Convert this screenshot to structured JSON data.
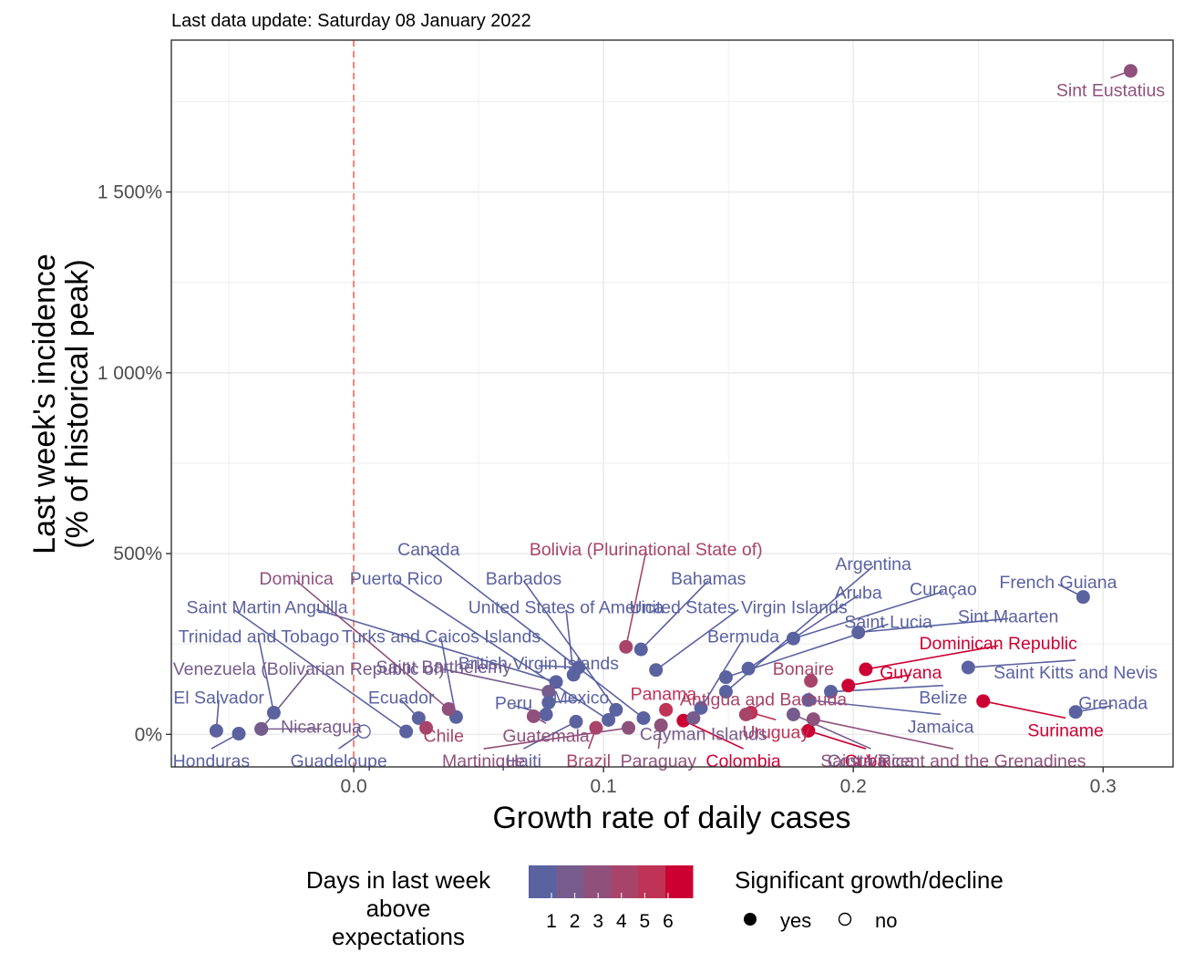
{
  "chart_data": {
    "type": "scatter",
    "subtitle": "Last data update: Saturday 08 January 2022",
    "xlabel": "Growth rate of daily cases",
    "ylabel_line1": "Last week's incidence",
    "ylabel_line2": "(% of historical peak)",
    "xlim": [
      -0.073,
      0.328
    ],
    "ylim": [
      -90,
      1920
    ],
    "x_ticks": [
      0.0,
      0.1,
      0.2,
      0.3
    ],
    "x_tick_labels": [
      "0.0",
      "0.1",
      "0.2",
      "0.3"
    ],
    "y_ticks": [
      0,
      500,
      1000,
      1500
    ],
    "y_tick_labels": [
      "0%",
      "500%",
      "1 000%",
      "1 500%"
    ],
    "reference_line_x": 0,
    "grid": true,
    "legend_position": "bottom",
    "legend_color": {
      "title_lines": [
        "Days in last week",
        "above",
        "expectations"
      ],
      "labels": [
        "1",
        "2",
        "3",
        "4",
        "5",
        "6"
      ],
      "colors": [
        "#5b62a0",
        "#765b8d",
        "#8f517c",
        "#a8446a",
        "#bf3356",
        "#cc0033"
      ]
    },
    "legend_shape": {
      "title": "Significant growth/decline",
      "items": [
        {
          "label": "yes",
          "filled": true
        },
        {
          "label": "no",
          "filled": false
        }
      ]
    },
    "points": [
      {
        "name": "Sint Eustatius",
        "x": 0.311,
        "y": 1835,
        "days": 3,
        "sig": true
      },
      {
        "name": "French Guiana",
        "x": 0.292,
        "y": 380,
        "days": 0,
        "sig": true
      },
      {
        "name": "Grenada",
        "x": 0.289,
        "y": 62,
        "days": 0,
        "sig": true
      },
      {
        "name": "Suriname",
        "x": 0.252,
        "y": 92,
        "days": 6,
        "sig": true
      },
      {
        "name": "Saint Kitts and Nevis",
        "x": 0.246,
        "y": 185,
        "days": 0,
        "sig": true
      },
      {
        "name": "Dominican Republic",
        "x": 0.205,
        "y": 180,
        "days": 6,
        "sig": true
      },
      {
        "name": "Guyana",
        "x": 0.198,
        "y": 135,
        "days": 6,
        "sig": true
      },
      {
        "name": "Sint Maarten",
        "x": 0.202,
        "y": 282,
        "days": 0,
        "sig": true
      },
      {
        "name": "Curaçao",
        "x": 0.176,
        "y": 265,
        "days": 0,
        "sig": true
      },
      {
        "name": "Aruba",
        "x": 0.158,
        "y": 182,
        "days": 0,
        "sig": true
      },
      {
        "name": "Saint Lucia",
        "x": 0.149,
        "y": 158,
        "days": 0,
        "sig": true
      },
      {
        "name": "Argentina",
        "x": 0.149,
        "y": 118,
        "days": 0,
        "sig": true
      },
      {
        "name": "Belize",
        "x": 0.191,
        "y": 118,
        "days": 0,
        "sig": true
      },
      {
        "name": "Bonaire",
        "x": 0.183,
        "y": 148,
        "days": 4,
        "sig": true
      },
      {
        "name": "Jamaica",
        "x": 0.182,
        "y": 95,
        "days": 0,
        "sig": true
      },
      {
        "name": "Cuba",
        "x": 0.182,
        "y": 10,
        "days": 6,
        "sig": true
      },
      {
        "name": "Costa Rica",
        "x": 0.176,
        "y": 55,
        "days": 2,
        "sig": true
      },
      {
        "name": "Saint Vincent and the Grenadines",
        "x": 0.184,
        "y": 42,
        "days": 3,
        "sig": true
      },
      {
        "name": "Uruguay",
        "x": 0.159,
        "y": 60,
        "days": 5,
        "sig": true
      },
      {
        "name": "Antigua and Barbuda",
        "x": 0.157,
        "y": 55,
        "days": 4,
        "sig": true
      },
      {
        "name": "Bermuda",
        "x": 0.139,
        "y": 73,
        "days": 0,
        "sig": true
      },
      {
        "name": "Panama",
        "x": 0.125,
        "y": 68,
        "days": 5,
        "sig": true
      },
      {
        "name": "Colombia",
        "x": 0.132,
        "y": 38,
        "days": 6,
        "sig": true
      },
      {
        "name": "Paraguay",
        "x": 0.123,
        "y": 25,
        "days": 3,
        "sig": true
      },
      {
        "name": "Cayman Islands",
        "x": 0.136,
        "y": 45,
        "days": 2,
        "sig": true
      },
      {
        "name": "United States Virgin Islands",
        "x": 0.121,
        "y": 178,
        "days": 0,
        "sig": true
      },
      {
        "name": "Bahamas",
        "x": 0.115,
        "y": 235,
        "days": 0,
        "sig": true
      },
      {
        "name": "Bolivia (Plurinational State of)",
        "x": 0.109,
        "y": 242,
        "days": 4,
        "sig": true
      },
      {
        "name": "Barbados",
        "x": 0.105,
        "y": 68,
        "days": 0,
        "sig": true
      },
      {
        "name": "Canada",
        "x": 0.116,
        "y": 45,
        "days": 0,
        "sig": true
      },
      {
        "name": "Puerto Rico",
        "x": 0.102,
        "y": 40,
        "days": 0,
        "sig": true
      },
      {
        "name": "United States of America",
        "x": 0.088,
        "y": 165,
        "days": 0,
        "sig": true
      },
      {
        "name": "British Virgin Islands",
        "x": 0.09,
        "y": 185,
        "days": 0,
        "sig": true
      },
      {
        "name": "Anguilla",
        "x": 0.081,
        "y": 145,
        "days": 0,
        "sig": true
      },
      {
        "name": "Saint Barthélemy",
        "x": 0.078,
        "y": 118,
        "days": 2,
        "sig": true
      },
      {
        "name": "Mexico",
        "x": 0.078,
        "y": 88,
        "days": 0,
        "sig": true
      },
      {
        "name": "Peru",
        "x": 0.077,
        "y": 55,
        "days": 0,
        "sig": true
      },
      {
        "name": "Guatemala",
        "x": 0.072,
        "y": 50,
        "days": 3,
        "sig": true
      },
      {
        "name": "Haiti",
        "x": 0.089,
        "y": 35,
        "days": 0,
        "sig": true
      },
      {
        "name": "Brazil",
        "x": 0.097,
        "y": 18,
        "days": 4,
        "sig": true
      },
      {
        "name": "Martinique",
        "x": 0.11,
        "y": 18,
        "days": 3,
        "sig": true
      },
      {
        "name": "Turks and Caicos Islands",
        "x": 0.041,
        "y": 48,
        "days": 0,
        "sig": true
      },
      {
        "name": "Dominica",
        "x": 0.038,
        "y": 70,
        "days": 3,
        "sig": true
      },
      {
        "name": "Ecuador",
        "x": 0.026,
        "y": 45,
        "days": 0,
        "sig": true
      },
      {
        "name": "Chile",
        "x": 0.029,
        "y": 18,
        "days": 4,
        "sig": true
      },
      {
        "name": "Saint Martin",
        "x": 0.021,
        "y": 8,
        "days": 0,
        "sig": true
      },
      {
        "name": "Guadeloupe",
        "x": 0.004,
        "y": 8,
        "days": 0,
        "sig": false
      },
      {
        "name": "Trinidad and Tobago",
        "x": -0.032,
        "y": 60,
        "days": 0,
        "sig": true
      },
      {
        "name": "Venezuela (Bolivarian Republic of)",
        "x": -0.037,
        "y": 15,
        "days": 2,
        "sig": true
      },
      {
        "name": "Nicaragua",
        "x": -0.037,
        "y": 15,
        "days": 2,
        "sig": true
      },
      {
        "name": "El Salvador",
        "x": -0.055,
        "y": 10,
        "days": 0,
        "sig": true
      },
      {
        "name": "Honduras",
        "x": -0.046,
        "y": 2,
        "days": 0,
        "sig": true
      }
    ],
    "labels": [
      {
        "name": "Sint Eustatius",
        "lx": 0.303,
        "ly": 1780,
        "anchor": "middle"
      },
      {
        "name": "French Guiana",
        "lx": 0.282,
        "ly": 420,
        "anchor": "middle"
      },
      {
        "name": "Grenada",
        "lx": 0.304,
        "ly": 85,
        "anchor": "middle"
      },
      {
        "name": "Suriname",
        "lx": 0.285,
        "ly": 10,
        "anchor": "middle"
      },
      {
        "name": "Saint Kitts and Nevis",
        "lx": 0.289,
        "ly": 170,
        "anchor": "middle"
      },
      {
        "name": "Dominican Republic",
        "lx": 0.258,
        "ly": 250,
        "anchor": "middle"
      },
      {
        "name": "Guyana",
        "lx": 0.223,
        "ly": 170,
        "anchor": "middle"
      },
      {
        "name": "Sint Maarten",
        "lx": 0.262,
        "ly": 325,
        "anchor": "middle"
      },
      {
        "name": "Curaçao",
        "lx": 0.236,
        "ly": 400,
        "anchor": "middle"
      },
      {
        "name": "Aruba",
        "lx": 0.202,
        "ly": 390,
        "anchor": "middle"
      },
      {
        "name": "Saint Lucia",
        "lx": 0.214,
        "ly": 310,
        "anchor": "middle"
      },
      {
        "name": "Argentina",
        "lx": 0.208,
        "ly": 470,
        "anchor": "middle"
      },
      {
        "name": "Belize",
        "lx": 0.236,
        "ly": 100,
        "anchor": "middle"
      },
      {
        "name": "Bonaire",
        "lx": 0.18,
        "ly": 180,
        "anchor": "middle"
      },
      {
        "name": "Jamaica",
        "lx": 0.235,
        "ly": 20,
        "anchor": "middle"
      },
      {
        "name": "Cuba",
        "lx": 0.205,
        "ly": -75,
        "anchor": "middle"
      },
      {
        "name": "Costa Rica",
        "lx": 0.207,
        "ly": -75,
        "anchor": "middle"
      },
      {
        "name": "Saint Vincent and the Grenadines",
        "lx": 0.24,
        "ly": -75,
        "anchor": "middle"
      },
      {
        "name": "Uruguay",
        "lx": 0.169,
        "ly": 5,
        "anchor": "middle"
      },
      {
        "name": "Antigua and Barbuda",
        "lx": 0.164,
        "ly": 95,
        "anchor": "middle"
      },
      {
        "name": "Bermuda",
        "lx": 0.156,
        "ly": 270,
        "anchor": "middle"
      },
      {
        "name": "Panama",
        "lx": 0.124,
        "ly": 110,
        "anchor": "middle"
      },
      {
        "name": "Colombia",
        "lx": 0.156,
        "ly": -75,
        "anchor": "middle"
      },
      {
        "name": "Paraguay",
        "lx": 0.122,
        "ly": -75,
        "anchor": "middle"
      },
      {
        "name": "Cayman Islands",
        "lx": 0.14,
        "ly": 0,
        "anchor": "middle"
      },
      {
        "name": "United States Virgin Islands",
        "lx": 0.154,
        "ly": 350,
        "anchor": "middle"
      },
      {
        "name": "Bahamas",
        "lx": 0.142,
        "ly": 430,
        "anchor": "middle"
      },
      {
        "name": "Bolivia (Plurinational State of)",
        "lx": 0.117,
        "ly": 510,
        "anchor": "middle"
      },
      {
        "name": "Barbados",
        "lx": 0.068,
        "ly": 430,
        "anchor": "middle"
      },
      {
        "name": "Canada",
        "lx": 0.03,
        "ly": 510,
        "anchor": "middle"
      },
      {
        "name": "Puerto Rico",
        "lx": 0.017,
        "ly": 430,
        "anchor": "middle"
      },
      {
        "name": "United States of America",
        "lx": 0.085,
        "ly": 350,
        "anchor": "middle"
      },
      {
        "name": "British Virgin Islands",
        "lx": 0.074,
        "ly": 195,
        "anchor": "middle"
      },
      {
        "name": "Anguilla",
        "lx": -0.015,
        "ly": 350,
        "anchor": "middle"
      },
      {
        "name": "Saint Barthélemy",
        "lx": 0.036,
        "ly": 185,
        "anchor": "middle"
      },
      {
        "name": "Mexico",
        "lx": 0.091,
        "ly": 100,
        "anchor": "middle"
      },
      {
        "name": "Peru",
        "lx": 0.064,
        "ly": 85,
        "anchor": "middle"
      },
      {
        "name": "Guatemala",
        "lx": 0.077,
        "ly": -5,
        "anchor": "middle"
      },
      {
        "name": "Haiti",
        "lx": 0.068,
        "ly": -75,
        "anchor": "middle"
      },
      {
        "name": "Brazil",
        "lx": 0.094,
        "ly": -75,
        "anchor": "middle"
      },
      {
        "name": "Martinique",
        "lx": 0.052,
        "ly": -75,
        "anchor": "middle"
      },
      {
        "name": "Turks and Caicos Islands",
        "lx": 0.035,
        "ly": 270,
        "anchor": "middle"
      },
      {
        "name": "Dominica",
        "lx": -0.023,
        "ly": 430,
        "anchor": "middle"
      },
      {
        "name": "Ecuador",
        "lx": 0.019,
        "ly": 100,
        "anchor": "middle"
      },
      {
        "name": "Chile",
        "lx": 0.036,
        "ly": -5,
        "anchor": "middle"
      },
      {
        "name": "Saint Martin",
        "lx": -0.048,
        "ly": 350,
        "anchor": "middle"
      },
      {
        "name": "Guadeloupe",
        "lx": -0.006,
        "ly": -75,
        "anchor": "middle"
      },
      {
        "name": "Trinidad and Tobago",
        "lx": -0.038,
        "ly": 270,
        "anchor": "middle"
      },
      {
        "name": "Venezuela (Bolivarian Republic of)",
        "lx": -0.018,
        "ly": 180,
        "anchor": "middle"
      },
      {
        "name": "Nicaragua",
        "lx": -0.013,
        "ly": 20,
        "anchor": "middle"
      },
      {
        "name": "El Salvador",
        "lx": -0.054,
        "ly": 100,
        "anchor": "middle"
      },
      {
        "name": "Honduras",
        "lx": -0.057,
        "ly": -75,
        "anchor": "middle"
      }
    ]
  }
}
